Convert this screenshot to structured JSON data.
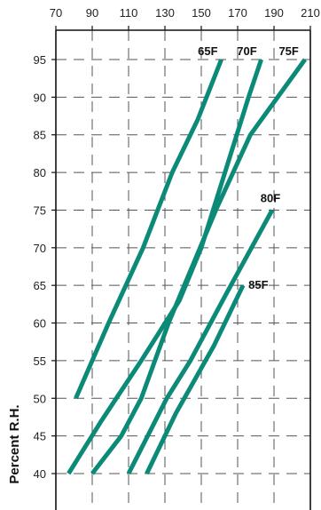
{
  "chart_data": {
    "type": "line",
    "title": "",
    "xlabel": "",
    "ylabel": "Percent R.H.",
    "xlim": [
      70,
      210
    ],
    "ylim": [
      37,
      99
    ],
    "x_ticks": [
      70,
      90,
      110,
      130,
      150,
      170,
      190,
      210
    ],
    "y_ticks": [
      40,
      45,
      50,
      55,
      60,
      65,
      70,
      75,
      80,
      85,
      90,
      95
    ],
    "grid": true,
    "legend": "none",
    "line_color": "#0b8a78",
    "series": [
      {
        "name": "65F",
        "x": [
          81,
          99,
          118,
          134,
          148,
          161
        ],
        "y": [
          50,
          60,
          70,
          80,
          87,
          95
        ]
      },
      {
        "name": "70F",
        "x": [
          77,
          95,
          117,
          138,
          150,
          163,
          176,
          183
        ],
        "y": [
          40,
          47,
          55,
          63,
          70,
          80,
          90,
          95
        ]
      },
      {
        "name": "75F",
        "x": [
          90,
          106,
          117,
          132,
          158,
          177,
          207
        ],
        "y": [
          40,
          45,
          50,
          60,
          75,
          85,
          95
        ]
      },
      {
        "name": "80F",
        "x": [
          110,
          131,
          144,
          164,
          189
        ],
        "y": [
          40,
          50,
          55,
          64,
          75
        ]
      },
      {
        "name": "85F",
        "x": [
          120,
          136,
          157,
          173
        ],
        "y": [
          40,
          48,
          57,
          65
        ]
      }
    ]
  }
}
